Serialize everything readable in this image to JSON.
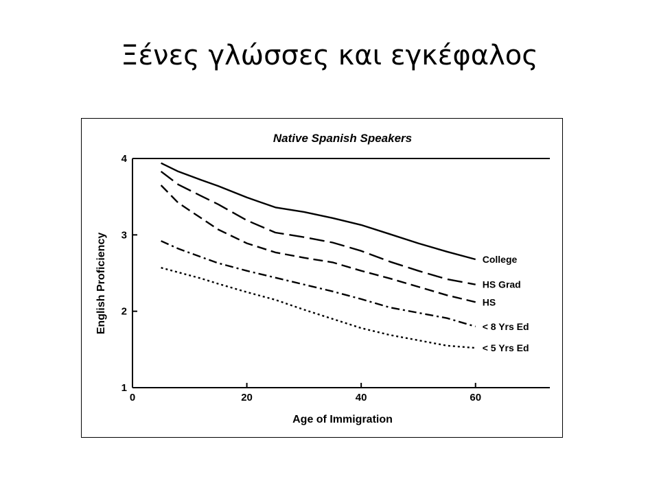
{
  "slide": {
    "title": "Ξένες γλώσσες και εγκέφαλος"
  },
  "chart_data": {
    "type": "line",
    "title": "Native Spanish Speakers",
    "xlabel": "Age of Immigration",
    "ylabel": "English Proficiency",
    "xlim": [
      0,
      73
    ],
    "ylim": [
      1,
      4
    ],
    "xticks": [
      0,
      20,
      40,
      60
    ],
    "yticks": [
      1,
      2,
      3,
      4
    ],
    "grid": false,
    "legend": "inline-right",
    "colors": {
      "line": "#000000",
      "text": "#000000",
      "frame": "#000000"
    },
    "series": [
      {
        "name": "College",
        "style": "solid",
        "x": [
          5,
          8,
          12,
          15,
          20,
          25,
          30,
          35,
          40,
          45,
          50,
          55,
          60
        ],
        "y": [
          3.94,
          3.83,
          3.72,
          3.64,
          3.49,
          3.36,
          3.3,
          3.22,
          3.13,
          3.01,
          2.89,
          2.78,
          2.68
        ]
      },
      {
        "name": "HS Grad",
        "style": "long-dash",
        "x": [
          5,
          8,
          12,
          15,
          20,
          25,
          30,
          35,
          40,
          45,
          50,
          55,
          60
        ],
        "y": [
          3.83,
          3.66,
          3.51,
          3.4,
          3.19,
          3.03,
          2.97,
          2.9,
          2.79,
          2.65,
          2.53,
          2.42,
          2.35
        ]
      },
      {
        "name": "HS",
        "style": "dash",
        "x": [
          5,
          8,
          12,
          15,
          20,
          25,
          30,
          35,
          40,
          45,
          50,
          55,
          60
        ],
        "y": [
          3.65,
          3.42,
          3.22,
          3.07,
          2.89,
          2.77,
          2.7,
          2.64,
          2.53,
          2.43,
          2.32,
          2.21,
          2.12
        ]
      },
      {
        "name": "< 8 Yrs Ed",
        "style": "dash-dot",
        "x": [
          5,
          8,
          12,
          15,
          20,
          25,
          30,
          35,
          40,
          45,
          50,
          55,
          60
        ],
        "y": [
          2.92,
          2.82,
          2.71,
          2.63,
          2.53,
          2.44,
          2.35,
          2.26,
          2.16,
          2.05,
          1.98,
          1.91,
          1.8
        ]
      },
      {
        "name": "< 5 Yrs Ed",
        "style": "dot",
        "x": [
          5,
          8,
          12,
          15,
          20,
          25,
          30,
          35,
          40,
          45,
          50,
          55,
          60
        ],
        "y": [
          2.57,
          2.51,
          2.43,
          2.36,
          2.25,
          2.15,
          2.02,
          1.9,
          1.78,
          1.69,
          1.62,
          1.55,
          1.52
        ]
      }
    ]
  }
}
